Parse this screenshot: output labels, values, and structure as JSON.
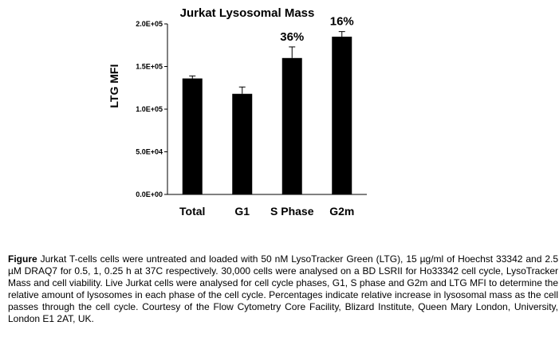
{
  "chart_data": {
    "type": "bar",
    "title": "Jurkat Lysosomal Mass",
    "ylabel": "LTG MFI",
    "xlabel": "",
    "categories": [
      "Total",
      "G1",
      "S Phase",
      "G2m"
    ],
    "values": [
      136000,
      118000,
      160000,
      185000
    ],
    "errors": [
      3000,
      8000,
      13000,
      6000
    ],
    "annotations": [
      "",
      "",
      "36%",
      "16%"
    ],
    "ylim": [
      0,
      200000
    ],
    "yticks": [
      0,
      50000,
      100000,
      150000,
      200000
    ],
    "ytick_labels": [
      "0.0E+00",
      "5.0E+04",
      "1.0E+05",
      "1.5E+05",
      "2.0E+05"
    ],
    "bar_color": "#000000",
    "grid": false
  },
  "caption": {
    "label": "Figure",
    "text": " Jurkat T-cells cells were untreated and loaded with 50 nM LysoTracker Green (LTG), 15 µg/ml of Hoechst 33342 and 2.5 µM DRAQ7 for 0.5, 1, 0.25 h at 37C respectively. 30,000 cells were analysed on a BD LSRII for Ho33342 cell cycle, LysoTracker Mass and cell viability. Live Jurkat cells were analysed for cell cycle phases, G1, S phase and G2m and LTG MFI to determine the relative amount of lysosomes in each phase of the cell cycle. Percentages indicate relative increase in lysosomal mass as the cell passes through the cell cycle. Courtesy of the Flow Cytometry Core Facility, Blizard Institute, Queen Mary London, University, London E1 2AT, UK."
  }
}
